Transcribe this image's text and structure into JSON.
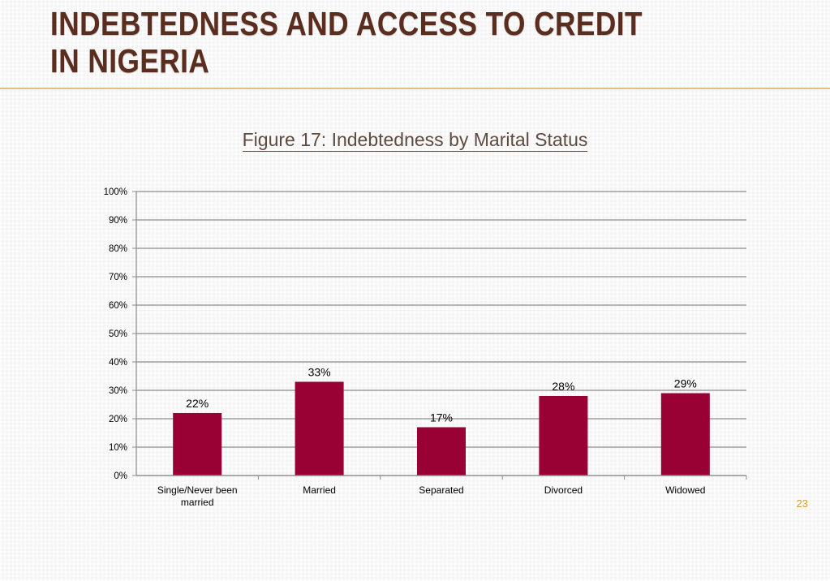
{
  "slide": {
    "title": "INDEBTEDNESS AND ACCESS TO CREDIT IN NIGERIA",
    "page_number": "23"
  },
  "colors": {
    "title": "#5a2d1e",
    "rule": "#e2c27a",
    "bar": "#990033",
    "page_number": "#d6a030"
  },
  "chart_data": {
    "type": "bar",
    "title": "Figure 17: Indebtedness by Marital Status",
    "categories": [
      "Single/Never been married",
      "Married",
      "Separated",
      "Divorced",
      "Widowed"
    ],
    "category_lines": [
      [
        "Single/Never been",
        "married"
      ],
      [
        "Married"
      ],
      [
        "Separated"
      ],
      [
        "Divorced"
      ],
      [
        "Widowed"
      ]
    ],
    "values": [
      22,
      33,
      17,
      28,
      29
    ],
    "data_labels": [
      "22%",
      "33%",
      "17%",
      "28%",
      "29%"
    ],
    "ylim": [
      0,
      100
    ],
    "yticks": [
      0,
      10,
      20,
      30,
      40,
      50,
      60,
      70,
      80,
      90,
      100
    ],
    "ytick_labels": [
      "0%",
      "10%",
      "20%",
      "30%",
      "40%",
      "50%",
      "60%",
      "70%",
      "80%",
      "90%",
      "100%"
    ],
    "grid": true,
    "legend": "none"
  }
}
